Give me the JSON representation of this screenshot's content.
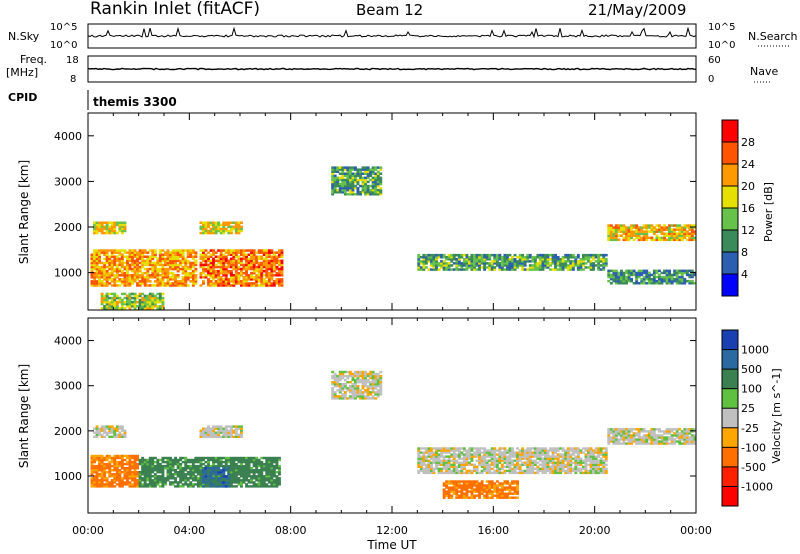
{
  "header": {
    "site": "Rankin Inlet (fitACF)",
    "beam": "Beam 12",
    "date": "21/May/2009"
  },
  "strips": {
    "nsky_label": "N.Sky",
    "nsky_top": "10^5",
    "nsky_bottom": "10^0",
    "nsearch_label": "N.Search",
    "nsearch_top": "10^5",
    "nsearch_bottom": "10^0",
    "freq_label": "Freq.",
    "freq_unit": "[MHz]",
    "freq_top": "18",
    "freq_bottom": "8",
    "nave_label": "Nave",
    "nave_top": "60",
    "nave_bottom": "0",
    "cpid_label": "CPID",
    "cpid_value": "themis 3300"
  },
  "colors": {
    "power_scale": [
      "#0000ff",
      "#2d5fb0",
      "#3a8a5a",
      "#66c24a",
      "#e6e000",
      "#ff9900",
      "#ff5500",
      "#ff0000"
    ],
    "velocity_scale": [
      "#1a3fb0",
      "#2a6aa0",
      "#3a8050",
      "#60c040",
      "#c0c0c0",
      "#ffa500",
      "#ff7000",
      "#ff2000",
      "#ff0000"
    ]
  },
  "chart_data": [
    {
      "type": "heatmap",
      "panel": "power",
      "xlabel": "Time UT",
      "ylabel": "Slant Range [km]",
      "xlim": [
        0,
        24
      ],
      "ylim": [
        180,
        4500
      ],
      "x_ticks": [
        "00:00",
        "04:00",
        "08:00",
        "12:00",
        "16:00",
        "20:00",
        "00:00"
      ],
      "y_ticks": [
        1000,
        2000,
        3000,
        4000
      ],
      "colorbar": {
        "label": "Power [dB]",
        "ticks": [
          4,
          8,
          12,
          16,
          20,
          24,
          28
        ],
        "range": [
          0,
          32
        ]
      },
      "regions": [
        {
          "t0": 0.1,
          "t1": 4.3,
          "r0": 700,
          "r1": 1500,
          "value": 22
        },
        {
          "t0": 0.2,
          "t1": 1.5,
          "r0": 1850,
          "r1": 2100,
          "value": 18
        },
        {
          "t0": 4.4,
          "t1": 7.6,
          "r0": 700,
          "r1": 1500,
          "value": 24
        },
        {
          "t0": 4.4,
          "t1": 6.0,
          "r0": 1850,
          "r1": 2100,
          "value": 18
        },
        {
          "t0": 9.6,
          "t1": 11.5,
          "r0": 2700,
          "r1": 3300,
          "value": 12
        },
        {
          "t0": 13.0,
          "t1": 20.5,
          "r0": 1050,
          "r1": 1400,
          "value": 12
        },
        {
          "t0": 20.5,
          "t1": 24.0,
          "r0": 1700,
          "r1": 2050,
          "value": 20
        },
        {
          "t0": 20.5,
          "t1": 24.0,
          "r0": 750,
          "r1": 1050,
          "value": 10
        },
        {
          "t0": 0.5,
          "t1": 3.0,
          "r0": 200,
          "r1": 550,
          "value": 16
        }
      ]
    },
    {
      "type": "heatmap",
      "panel": "velocity",
      "xlabel": "Time UT",
      "ylabel": "Slant Range [km]",
      "xlim": [
        0,
        24
      ],
      "ylim": [
        180,
        4500
      ],
      "x_ticks": [
        "00:00",
        "04:00",
        "08:00",
        "12:00",
        "16:00",
        "20:00",
        "00:00"
      ],
      "y_ticks": [
        1000,
        2000,
        3000,
        4000
      ],
      "colorbar": {
        "label": "Velocity [m s^-1]",
        "ticks": [
          "1000",
          "500",
          "100",
          "25",
          "-25",
          "-100",
          "-500",
          "-1000"
        ]
      },
      "regions": [
        {
          "t0": 0.1,
          "t1": 2.0,
          "r0": 750,
          "r1": 1450,
          "value": -150
        },
        {
          "t0": 2.0,
          "t1": 7.5,
          "r0": 750,
          "r1": 1400,
          "value": 200
        },
        {
          "t0": 0.2,
          "t1": 1.5,
          "r0": 1850,
          "r1": 2100,
          "value": 0
        },
        {
          "t0": 4.4,
          "t1": 6.0,
          "r0": 1850,
          "r1": 2100,
          "value": 0
        },
        {
          "t0": 9.6,
          "t1": 11.5,
          "r0": 2700,
          "r1": 3300,
          "value": 0
        },
        {
          "t0": 13.0,
          "t1": 20.5,
          "r0": 1050,
          "r1": 1600,
          "value": 0
        },
        {
          "t0": 20.5,
          "t1": 24.0,
          "r0": 1700,
          "r1": 2050,
          "value": 0
        },
        {
          "t0": 14.0,
          "t1": 17.0,
          "r0": 500,
          "r1": 900,
          "value": -150
        },
        {
          "t0": 4.5,
          "t1": 5.5,
          "r0": 750,
          "r1": 1200,
          "value": 700
        }
      ]
    }
  ]
}
